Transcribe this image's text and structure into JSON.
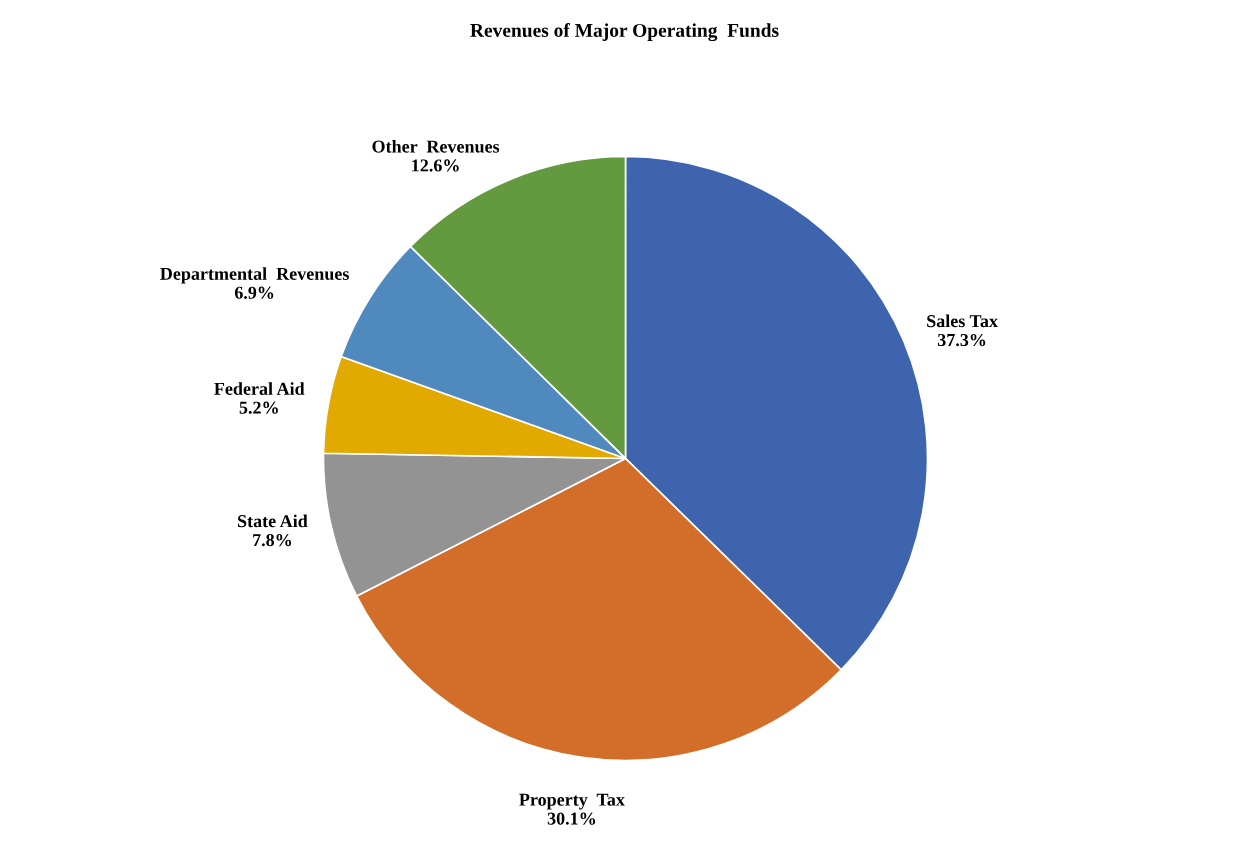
{
  "chart_data": {
    "type": "pie",
    "title": "Revenues of Major Operating  Funds",
    "categories": [
      "Sales Tax",
      "Property  Tax",
      "State Aid",
      "Federal Aid",
      "Departmental  Revenues",
      "Other  Revenues"
    ],
    "values": [
      37.3,
      30.1,
      7.8,
      5.2,
      6.9,
      12.6
    ],
    "value_labels": [
      "37.3%",
      "30.1%",
      "7.8%",
      "5.2%",
      "6.9%",
      "12.6%"
    ],
    "colors": [
      "#3d64ac",
      "#d36e2a",
      "#939393",
      "#e2aa00",
      "#4f89bd",
      "#639a3f"
    ],
    "legend": false
  }
}
